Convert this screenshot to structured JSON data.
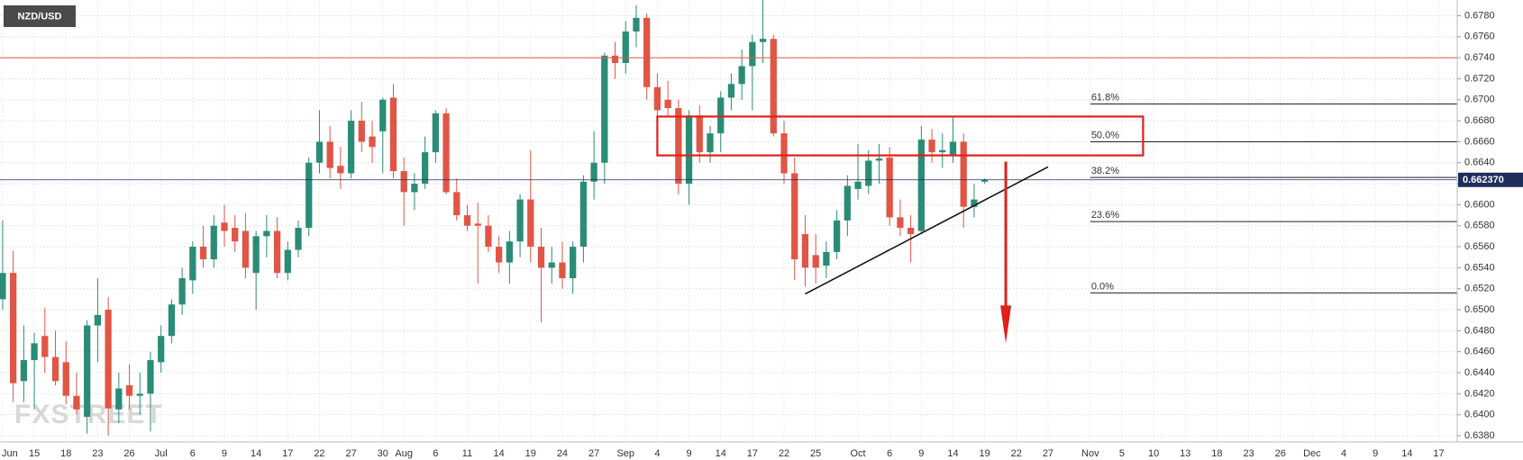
{
  "chart_data": {
    "type": "candlestick",
    "title": "NZD/USD",
    "watermark": "FXSTREET",
    "up_color": "#2a8c76",
    "down_color": "#e05545",
    "grid": true,
    "categories": [
      "Jun",
      null,
      null,
      "15",
      null,
      null,
      "18",
      null,
      null,
      "23",
      null,
      null,
      "26",
      null,
      null,
      "Jul",
      null,
      null,
      "6",
      null,
      null,
      "9",
      null,
      null,
      "14",
      null,
      null,
      "17",
      null,
      null,
      "22",
      null,
      null,
      "27",
      null,
      null,
      "30",
      null,
      "Aug",
      null,
      null,
      "6",
      null,
      null,
      "11",
      null,
      null,
      "14",
      null,
      null,
      "19",
      null,
      null,
      "24",
      null,
      null,
      "27",
      null,
      null,
      "Sep",
      null,
      null,
      "4",
      null,
      null,
      "9",
      null,
      null,
      "14",
      null,
      null,
      "17",
      null,
      null,
      "22",
      null,
      null,
      "25",
      null,
      null,
      null,
      "Oct",
      null,
      null,
      "6",
      null,
      null,
      "9",
      null,
      null,
      "14",
      null,
      null,
      "19",
      null,
      null,
      "22",
      null,
      null,
      "27",
      null,
      null,
      null,
      "Nov",
      null,
      null,
      "5",
      null,
      null,
      "10",
      null,
      null,
      "13",
      null,
      null,
      "18",
      null,
      null,
      "23",
      null,
      null,
      "26",
      null,
      null,
      "Dec",
      null,
      null,
      "4",
      null,
      null,
      "9",
      null,
      null,
      "14",
      null,
      null,
      "17",
      null
    ],
    "open": [
      0.651,
      0.6535,
      0.6432,
      0.6452,
      0.6475,
      0.6455,
      0.645,
      0.6418,
      0.6398,
      0.6485,
      0.65,
      0.6405,
      0.6428,
      0.6418,
      0.642,
      0.645,
      0.6475,
      0.6505,
      0.6528,
      0.656,
      0.6548,
      0.6583,
      0.6578,
      0.6575,
      0.6535,
      0.657,
      0.6575,
      0.6535,
      0.6557,
      0.6578,
      0.664,
      0.666,
      0.6637,
      0.663,
      0.668,
      0.6665,
      0.667,
      0.6702,
      0.6632,
      0.6612,
      0.662,
      0.665,
      0.6687,
      0.6612,
      0.659,
      0.6582,
      0.658,
      0.656,
      0.6545,
      0.6565,
      0.6605,
      0.656,
      0.654,
      0.6545,
      0.653,
      0.656,
      0.6622,
      0.664,
      0.6742,
      0.6735,
      0.6765,
      0.6778,
      0.6712,
      0.67,
      0.6692,
      0.662,
      0.6685,
      0.665,
      0.6668,
      0.6702,
      0.6715,
      0.6732,
      0.6755,
      0.6758,
      0.6668,
      0.663,
      0.6572,
      0.6552,
      0.6542,
      0.6555,
      0.6585,
      0.6615,
      0.6618,
      0.6642,
      0.6645,
      0.6588,
      0.6578,
      0.6575,
      0.6662,
      0.665,
      0.6648,
      0.666,
      0.6598,
      0.6622,
      null,
      null,
      null,
      null,
      null,
      null,
      null,
      null,
      null,
      null,
      null,
      null,
      null,
      null,
      null,
      null,
      null,
      null,
      null,
      null,
      null,
      null,
      null,
      null,
      null,
      null,
      null,
      null,
      null,
      null,
      null,
      null,
      null,
      null,
      null,
      null,
      null,
      null,
      null,
      null,
      null,
      null,
      null,
      null
    ],
    "high": [
      0.6585,
      0.6556,
      0.6485,
      0.6478,
      0.6502,
      0.648,
      0.647,
      0.644,
      0.649,
      0.653,
      0.6512,
      0.644,
      0.6448,
      0.644,
      0.646,
      0.6485,
      0.651,
      0.654,
      0.6565,
      0.658,
      0.659,
      0.66,
      0.659,
      0.6592,
      0.6575,
      0.659,
      0.6588,
      0.6565,
      0.6585,
      0.6645,
      0.669,
      0.6675,
      0.6655,
      0.669,
      0.6698,
      0.668,
      0.6702,
      0.6715,
      0.6645,
      0.663,
      0.6665,
      0.669,
      0.6692,
      0.6625,
      0.66,
      0.6602,
      0.659,
      0.657,
      0.6575,
      0.661,
      0.6652,
      0.6578,
      0.656,
      0.6565,
      0.6565,
      0.6628,
      0.667,
      0.6745,
      0.6755,
      0.6775,
      0.679,
      0.6782,
      0.6725,
      0.6718,
      0.67,
      0.669,
      0.6695,
      0.6675,
      0.6708,
      0.6725,
      0.6748,
      0.6762,
      0.6795,
      0.6762,
      0.668,
      0.6645,
      0.659,
      0.6572,
      0.6565,
      0.6595,
      0.6628,
      0.6658,
      0.6652,
      0.6658,
      0.6655,
      0.6605,
      0.659,
      0.6675,
      0.6672,
      0.6668,
      0.6683,
      0.6668,
      0.662,
      0.6625,
      null,
      null,
      null,
      null,
      null,
      null,
      null,
      null,
      null,
      null,
      null,
      null,
      null,
      null,
      null,
      null,
      null,
      null,
      null,
      null,
      null,
      null,
      null,
      null,
      null,
      null,
      null,
      null,
      null,
      null,
      null,
      null,
      null,
      null,
      null,
      null,
      null,
      null,
      null,
      null,
      null,
      null,
      null,
      null
    ],
    "low": [
      0.65,
      0.6412,
      0.6412,
      0.6405,
      0.644,
      0.6428,
      0.641,
      0.64,
      0.6382,
      0.645,
      0.638,
      0.6392,
      0.6405,
      0.64,
      0.6384,
      0.644,
      0.6468,
      0.6495,
      0.6515,
      0.654,
      0.654,
      0.656,
      0.6555,
      0.653,
      0.65,
      0.655,
      0.653,
      0.6528,
      0.655,
      0.657,
      0.663,
      0.6625,
      0.6615,
      0.6625,
      0.665,
      0.664,
      0.663,
      0.6625,
      0.658,
      0.6595,
      0.6615,
      0.664,
      0.661,
      0.6585,
      0.6575,
      0.6525,
      0.6555,
      0.6535,
      0.6525,
      0.655,
      0.6545,
      0.6488,
      0.6525,
      0.652,
      0.6515,
      0.6545,
      0.6605,
      0.662,
      0.672,
      0.6725,
      0.675,
      0.67,
      0.668,
      0.6685,
      0.661,
      0.66,
      0.664,
      0.664,
      0.665,
      0.669,
      0.67,
      0.669,
      0.6735,
      0.6665,
      0.662,
      0.6528,
      0.6522,
      0.6525,
      0.653,
      0.6548,
      0.657,
      0.6605,
      0.661,
      0.662,
      0.658,
      0.657,
      0.6545,
      0.6572,
      0.664,
      0.6635,
      0.664,
      0.6578,
      0.6588,
      0.662,
      null,
      null,
      null,
      null,
      null,
      null,
      null,
      null,
      null,
      null,
      null,
      null,
      null,
      null,
      null,
      null,
      null,
      null,
      null,
      null,
      null,
      null,
      null,
      null,
      null,
      null,
      null,
      null,
      null,
      null,
      null,
      null,
      null,
      null,
      null,
      null,
      null,
      null,
      null,
      null,
      null,
      null,
      null,
      null
    ],
    "close": [
      0.6535,
      0.643,
      0.6452,
      0.6468,
      0.6455,
      0.6432,
      0.6418,
      0.6405,
      0.6485,
      0.6495,
      0.6406,
      0.6425,
      0.6418,
      0.642,
      0.6452,
      0.6475,
      0.6505,
      0.653,
      0.656,
      0.6548,
      0.658,
      0.6575,
      0.6565,
      0.654,
      0.657,
      0.6575,
      0.6535,
      0.6557,
      0.6578,
      0.664,
      0.666,
      0.6635,
      0.663,
      0.668,
      0.666,
      0.6655,
      0.67,
      0.6632,
      0.6612,
      0.662,
      0.665,
      0.6687,
      0.6612,
      0.659,
      0.658,
      0.658,
      0.656,
      0.6545,
      0.6565,
      0.6605,
      0.656,
      0.654,
      0.6545,
      0.653,
      0.656,
      0.6622,
      0.664,
      0.6742,
      0.6735,
      0.6765,
      0.6778,
      0.6712,
      0.669,
      0.6692,
      0.662,
      0.6685,
      0.665,
      0.6668,
      0.6702,
      0.6715,
      0.6732,
      0.6755,
      0.6758,
      0.6668,
      0.663,
      0.6548,
      0.654,
      0.654,
      0.6555,
      0.6585,
      0.6618,
      0.6622,
      0.6642,
      0.6644,
      0.6588,
      0.6578,
      0.6572,
      0.6662,
      0.665,
      0.6652,
      0.666,
      0.6598,
      0.6605,
      0.6624,
      null,
      null,
      null,
      null,
      null,
      null,
      null,
      null,
      null,
      null,
      null,
      null,
      null,
      null,
      null,
      null,
      null,
      null,
      null,
      null,
      null,
      null,
      null,
      null,
      null,
      null,
      null,
      null,
      null,
      null,
      null,
      null,
      null,
      null,
      null,
      null,
      null,
      null,
      null,
      null,
      null,
      null,
      null,
      null
    ],
    "ylim": [
      0.6374,
      0.6795
    ],
    "yticks": [
      {
        "value": 0.638,
        "label": "0.6380"
      },
      {
        "value": 0.64,
        "label": "0.6400"
      },
      {
        "value": 0.642,
        "label": "0.6420"
      },
      {
        "value": 0.644,
        "label": "0.6440"
      },
      {
        "value": 0.646,
        "label": "0.6460"
      },
      {
        "value": 0.648,
        "label": "0.6480"
      },
      {
        "value": 0.65,
        "label": "0.6500"
      },
      {
        "value": 0.652,
        "label": "0.6520"
      },
      {
        "value": 0.654,
        "label": "0.6540"
      },
      {
        "value": 0.656,
        "label": "0.6560"
      },
      {
        "value": 0.658,
        "label": "0.6580"
      },
      {
        "value": 0.66,
        "label": "0.6600"
      },
      {
        "value": 0.662,
        "label": "0.6620"
      },
      {
        "value": 0.664,
        "label": "0.6640"
      },
      {
        "value": 0.666,
        "label": "0.6660"
      },
      {
        "value": 0.668,
        "label": "0.6680"
      },
      {
        "value": 0.67,
        "label": "0.6700"
      },
      {
        "value": 0.672,
        "label": "0.6720"
      },
      {
        "value": 0.674,
        "label": "0.6740"
      },
      {
        "value": 0.676,
        "label": "0.6760"
      },
      {
        "value": 0.678,
        "label": "0.6780"
      }
    ],
    "resistance": 0.674,
    "current_price": {
      "value": 0.66237,
      "label": "0.662370"
    },
    "zone": {
      "x": [
        62,
        108
      ],
      "y": [
        0.6684,
        0.6647
      ]
    },
    "trendline": {
      "x": [
        76,
        99
      ],
      "y": [
        0.6515,
        0.6636
      ]
    },
    "arrow": {
      "x": [
        95,
        95
      ],
      "y": [
        0.6641,
        0.6468
      ]
    },
    "fibonacci": {
      "x": 103,
      "levels": [
        {
          "label": "61.8%",
          "value": 0.6696
        },
        {
          "label": "50.0%",
          "value": 0.666
        },
        {
          "label": "38.2%",
          "value": 0.6626
        },
        {
          "label": "23.6%",
          "value": 0.6584
        },
        {
          "label": "0.0%",
          "value": 0.6516
        }
      ]
    }
  }
}
